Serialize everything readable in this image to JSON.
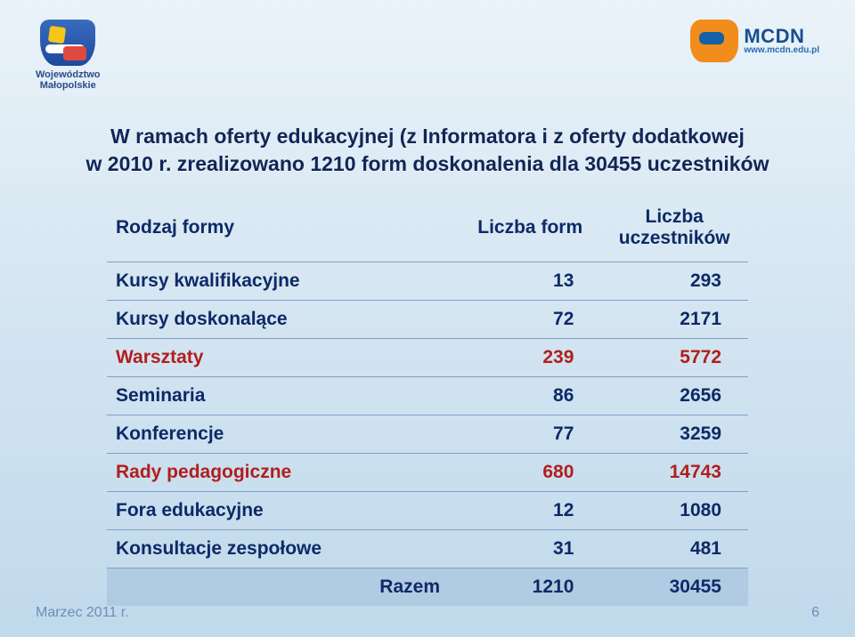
{
  "logos": {
    "left_label_line1": "Województwo",
    "left_label_line2": "Małopolskie",
    "right_brand": "MCDN",
    "right_url": "www.mcdn.edu.pl"
  },
  "title_line1": "W ramach oferty edukacyjnej (z Informatora i z oferty dodatkowej",
  "title_line2": "w 2010 r. zrealizowano 1210 form doskonalenia dla 30455 uczestników",
  "table": {
    "headers": {
      "col1": "Rodzaj formy",
      "col2": "Liczba form",
      "col3": "Liczba uczestników"
    },
    "rows": [
      {
        "label": "Kursy kwalifikacyjne",
        "forms": "13",
        "participants": "293",
        "highlight": false
      },
      {
        "label": "Kursy doskonalące",
        "forms": "72",
        "participants": "2171",
        "highlight": false
      },
      {
        "label": "Warsztaty",
        "forms": "239",
        "participants": "5772",
        "highlight": true
      },
      {
        "label": "Seminaria",
        "forms": "86",
        "participants": "2656",
        "highlight": false
      },
      {
        "label": "Konferencje",
        "forms": "77",
        "participants": "3259",
        "highlight": false
      },
      {
        "label": "Rady pedagogiczne",
        "forms": "680",
        "participants": "14743",
        "highlight": true
      },
      {
        "label": "Fora edukacyjne",
        "forms": "12",
        "participants": "1080",
        "highlight": false
      },
      {
        "label": "Konsultacje zespołowe",
        "forms": "31",
        "participants": "481",
        "highlight": false
      }
    ],
    "total": {
      "label": "Razem",
      "forms": "1210",
      "participants": "30455"
    }
  },
  "footer": {
    "date": "Marzec 2011 r.",
    "page": "6"
  },
  "colors": {
    "heading": "#0d2a66",
    "highlight_row": "#b11e1e",
    "rule": "#7ea1c9",
    "footer": "#6b8fb8"
  }
}
